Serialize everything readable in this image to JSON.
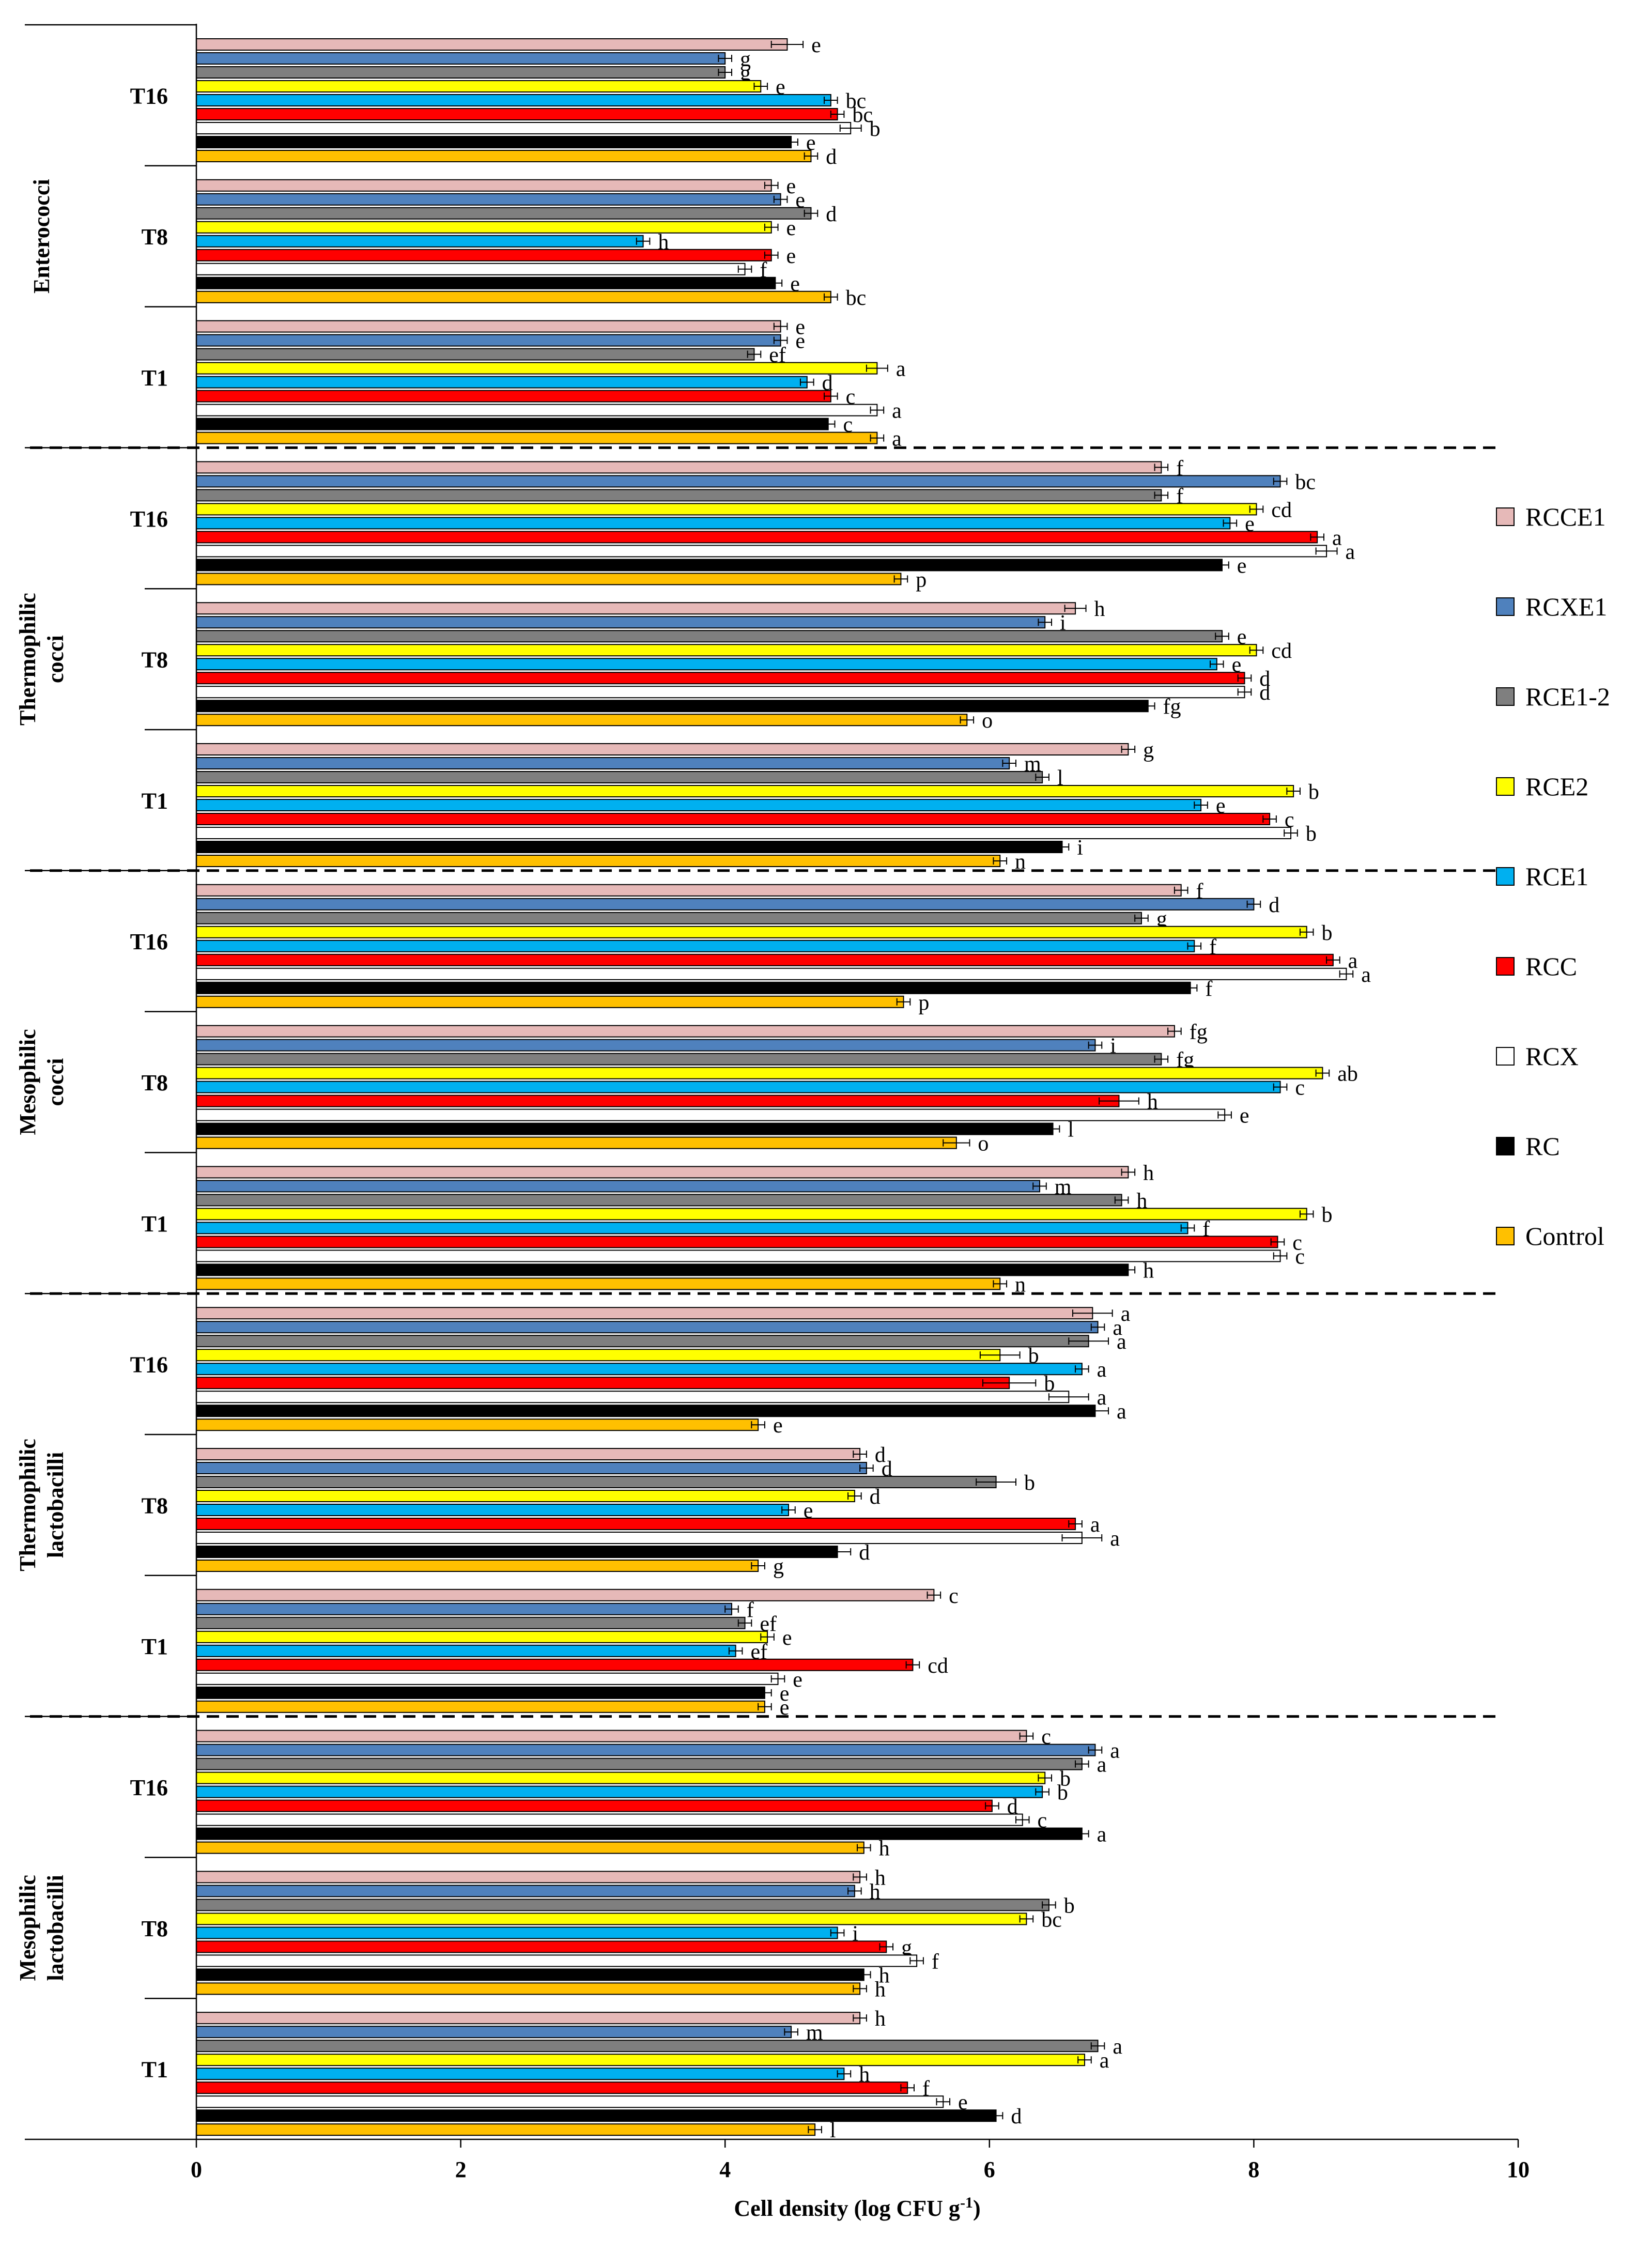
{
  "chart_data": {
    "type": "bar",
    "orientation": "horizontal",
    "xlabel": "Cell density (log CFU g",
    "xlabel_sup": "-1",
    "xlabel_end": ")",
    "xlim": [
      0,
      10
    ],
    "xticks": [
      0,
      2,
      4,
      6,
      8,
      10
    ],
    "legend_position": "right",
    "series": [
      {
        "name": "RCCE1",
        "color": "#e6b9b8"
      },
      {
        "name": "RCXE1",
        "color": "#4f81bd"
      },
      {
        "name": "RCE1-2",
        "color": "#7f7f7f"
      },
      {
        "name": "RCE2",
        "color": "#ffff00"
      },
      {
        "name": "RCE1",
        "color": "#00b0f0"
      },
      {
        "name": "RCC",
        "color": "#ff0000"
      },
      {
        "name": "RCX",
        "color": "#ffffff"
      },
      {
        "name": "RC",
        "color": "#000000"
      },
      {
        "name": "Control",
        "color": "#ffc000"
      }
    ],
    "groups": [
      {
        "name": "Enterococci",
        "label_lines": [
          "Enterococci"
        ],
        "times": [
          {
            "label": "T16",
            "values": [
              4.47,
              4.0,
              4.0,
              4.27,
              4.8,
              4.85,
              4.95,
              4.5,
              4.65
            ],
            "errors": [
              0.12,
              0.05,
              0.05,
              0.05,
              0.05,
              0.05,
              0.08,
              0.05,
              0.05
            ],
            "letters": [
              "e",
              "g",
              "g",
              "e",
              "bc",
              "bc",
              "b",
              "e",
              "d"
            ]
          },
          {
            "label": "T8",
            "values": [
              4.35,
              4.42,
              4.65,
              4.35,
              3.38,
              4.35,
              4.15,
              4.38,
              4.8
            ],
            "errors": [
              0.05,
              0.05,
              0.05,
              0.05,
              0.05,
              0.05,
              0.05,
              0.05,
              0.05
            ],
            "letters": [
              "e",
              "e",
              "d",
              "e",
              "h",
              "e",
              "f",
              "e",
              "bc"
            ]
          },
          {
            "label": "T1",
            "values": [
              4.42,
              4.42,
              4.22,
              5.15,
              4.62,
              4.8,
              5.15,
              4.78,
              5.15
            ],
            "errors": [
              0.05,
              0.05,
              0.05,
              0.08,
              0.05,
              0.05,
              0.05,
              0.05,
              0.05
            ],
            "letters": [
              "e",
              "e",
              "ef",
              "a",
              "d",
              "c",
              "a",
              "c",
              "a"
            ]
          }
        ]
      },
      {
        "name": "Thermophilic cocci",
        "label_lines": [
          "Thermophilic",
          "cocci"
        ],
        "times": [
          {
            "label": "T16",
            "values": [
              7.3,
              8.2,
              7.3,
              8.02,
              7.82,
              8.48,
              8.55,
              7.76,
              5.33
            ],
            "errors": [
              0.05,
              0.05,
              0.05,
              0.05,
              0.05,
              0.05,
              0.08,
              0.05,
              0.05
            ],
            "letters": [
              "f",
              "bc",
              "f",
              "cd",
              "e",
              "a",
              "a",
              "e",
              "p"
            ]
          },
          {
            "label": "T8",
            "values": [
              6.65,
              6.42,
              7.76,
              8.02,
              7.72,
              7.93,
              7.93,
              7.2,
              5.83
            ],
            "errors": [
              0.08,
              0.05,
              0.05,
              0.05,
              0.05,
              0.05,
              0.05,
              0.05,
              0.05
            ],
            "letters": [
              "h",
              "i",
              "e",
              "cd",
              "e",
              "d",
              "d",
              "fg",
              "o"
            ]
          },
          {
            "label": "T1",
            "values": [
              7.05,
              6.15,
              6.4,
              8.3,
              7.6,
              8.12,
              8.28,
              6.55,
              6.08
            ],
            "errors": [
              0.05,
              0.05,
              0.05,
              0.05,
              0.05,
              0.05,
              0.05,
              0.05,
              0.05
            ],
            "letters": [
              "g",
              "m",
              "l",
              "b",
              "e",
              "c",
              "b",
              "i",
              "n"
            ]
          }
        ]
      },
      {
        "name": "Mesophilic cocci",
        "label_lines": [
          "Mesophilic",
          "cocci"
        ],
        "times": [
          {
            "label": "T16",
            "values": [
              7.45,
              8.0,
              7.15,
              8.4,
              7.55,
              8.6,
              8.7,
              7.52,
              5.35
            ],
            "errors": [
              0.05,
              0.05,
              0.05,
              0.05,
              0.05,
              0.05,
              0.05,
              0.05,
              0.05
            ],
            "letters": [
              "f",
              "d",
              "g",
              "b",
              "f",
              "a",
              "a",
              "f",
              "p"
            ]
          },
          {
            "label": "T8",
            "values": [
              7.4,
              6.8,
              7.3,
              8.52,
              8.2,
              6.98,
              7.78,
              6.48,
              5.75
            ],
            "errors": [
              0.05,
              0.05,
              0.05,
              0.05,
              0.05,
              0.15,
              0.05,
              0.05,
              0.1
            ],
            "letters": [
              "fg",
              "i",
              "fg",
              "ab",
              "c",
              "h",
              "e",
              "l",
              "o"
            ]
          },
          {
            "label": "T1",
            "values": [
              7.05,
              6.38,
              7.0,
              8.4,
              7.5,
              8.18,
              8.2,
              7.05,
              6.08
            ],
            "errors": [
              0.05,
              0.05,
              0.05,
              0.05,
              0.05,
              0.05,
              0.05,
              0.05,
              0.05
            ],
            "letters": [
              "h",
              "m",
              "h",
              "b",
              "f",
              "c",
              "c",
              "h",
              "n"
            ]
          }
        ]
      },
      {
        "name": "Thermophilic lactobacilli",
        "label_lines": [
          "Thermophilic",
          "lactobacilli"
        ],
        "times": [
          {
            "label": "T16",
            "values": [
              6.78,
              6.82,
              6.75,
              6.08,
              6.7,
              6.15,
              6.6,
              6.8,
              4.25
            ],
            "errors": [
              0.15,
              0.05,
              0.15,
              0.15,
              0.05,
              0.2,
              0.15,
              0.1,
              0.05
            ],
            "letters": [
              "a",
              "a",
              "a",
              "b",
              "a",
              "b",
              "a",
              "a",
              "e"
            ]
          },
          {
            "label": "T8",
            "values": [
              5.02,
              5.07,
              6.05,
              4.98,
              4.48,
              6.65,
              6.7,
              4.85,
              4.25
            ],
            "errors": [
              0.05,
              0.05,
              0.15,
              0.05,
              0.05,
              0.05,
              0.15,
              0.1,
              0.05
            ],
            "letters": [
              "d",
              "d",
              "b",
              "d",
              "e",
              "a",
              "a",
              "d",
              "g"
            ]
          },
          {
            "label": "T1",
            "values": [
              5.58,
              4.05,
              4.15,
              4.32,
              4.08,
              5.42,
              4.4,
              4.3,
              4.3
            ],
            "errors": [
              0.05,
              0.05,
              0.05,
              0.05,
              0.05,
              0.05,
              0.05,
              0.05,
              0.05
            ],
            "letters": [
              "c",
              "f",
              "ef",
              "e",
              "ef",
              "cd",
              "e",
              "e",
              "e"
            ]
          }
        ]
      },
      {
        "name": "Mesophilic lactobacilli",
        "label_lines": [
          "Mesophilic",
          "lactobacilli"
        ],
        "times": [
          {
            "label": "T16",
            "values": [
              6.28,
              6.8,
              6.7,
              6.42,
              6.4,
              6.02,
              6.25,
              6.7,
              5.05
            ],
            "errors": [
              0.05,
              0.05,
              0.05,
              0.05,
              0.05,
              0.05,
              0.05,
              0.05,
              0.05
            ],
            "letters": [
              "c",
              "a",
              "a",
              "b",
              "b",
              "d",
              "c",
              "a",
              "h"
            ]
          },
          {
            "label": "T8",
            "values": [
              5.02,
              4.98,
              6.45,
              6.28,
              4.85,
              5.22,
              5.45,
              5.05,
              5.02
            ],
            "errors": [
              0.05,
              0.05,
              0.05,
              0.05,
              0.05,
              0.05,
              0.05,
              0.05,
              0.05
            ],
            "letters": [
              "h",
              "h",
              "b",
              "bc",
              "i",
              "g",
              "f",
              "h",
              "h"
            ]
          },
          {
            "label": "T1",
            "values": [
              5.02,
              4.5,
              6.82,
              6.72,
              4.9,
              5.38,
              5.65,
              6.05,
              4.68
            ],
            "errors": [
              0.05,
              0.05,
              0.05,
              0.05,
              0.05,
              0.05,
              0.05,
              0.05,
              0.05
            ],
            "letters": [
              "h",
              "m",
              "a",
              "a",
              "h",
              "f",
              "e",
              "d",
              "l"
            ]
          }
        ]
      }
    ]
  }
}
